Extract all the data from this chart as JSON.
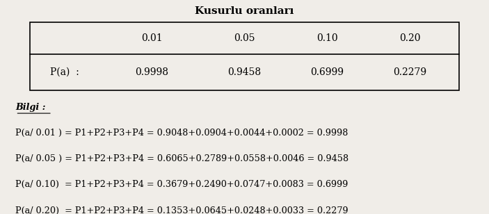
{
  "title": "Kusurlu oranları",
  "col_headers": [
    "",
    "0.01",
    "0.05",
    "0.10",
    "0.20"
  ],
  "row_label": "P(a)  :",
  "row_values": [
    "0.9998",
    "0.9458",
    "0.6999",
    "0.2279"
  ],
  "bilgi_label": "Bilgi :",
  "bilgi_lines": [
    "P(a/ 0.01 ) = P1+P2+P3+P4 = 0.9048+0.0904+0.0044+0.0002 = 0.9998",
    "P(a/ 0.05 ) = P1+P2+P3+P4 = 0.6065+0.2789+0.0558+0.0046 = 0.9458",
    "P(a/ 0.10)  = P1+P2+P3+P4 = 0.3679+0.2490+0.0747+0.0083 = 0.6999",
    "P(a/ 0.20)  = P1+P2+P3+P4 = 0.1353+0.0645+0.0248+0.0033 = 0.2279"
  ],
  "bg_color": "#f0ede8",
  "font_size_title": 11,
  "font_size_table": 10,
  "font_size_bilgi": 9.2
}
